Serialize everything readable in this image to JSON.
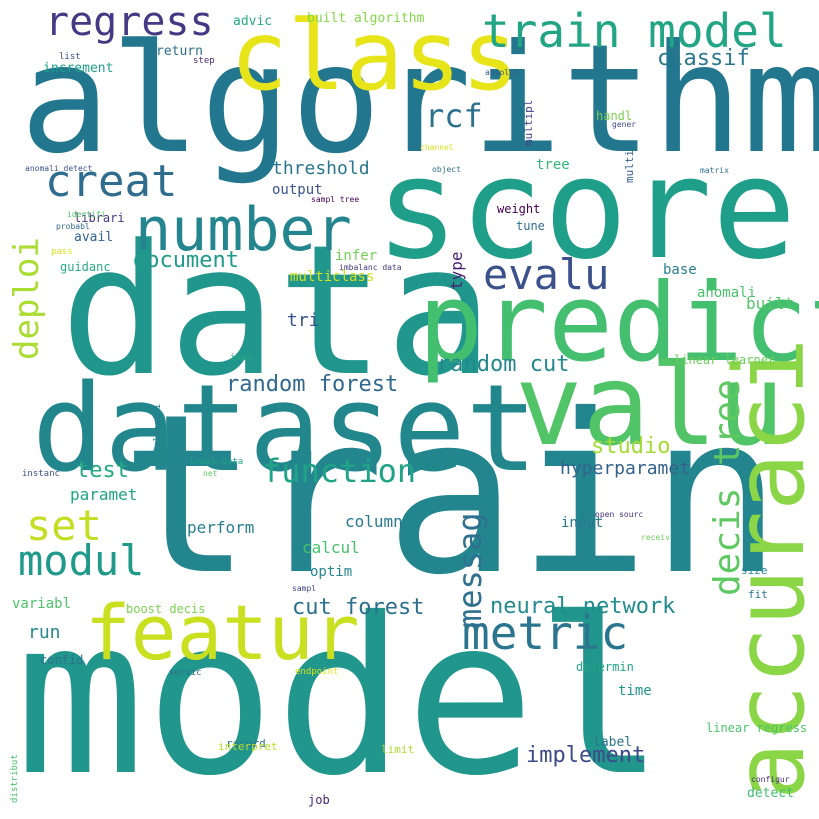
{
  "words": [
    {
      "id": "model",
      "text": "model",
      "color": "#21968c"
    },
    {
      "id": "train",
      "text": "train",
      "color": "#23868e"
    },
    {
      "id": "data",
      "text": "data",
      "color": "#21968c"
    },
    {
      "id": "algorithm",
      "text": "algorithm",
      "color": "#22778e"
    },
    {
      "id": "score",
      "text": "score",
      "color": "#1f9e89"
    },
    {
      "id": "dataset",
      "text": "dataset",
      "color": "#22878d"
    },
    {
      "id": "predict",
      "text": "predict",
      "color": "#44bf70"
    },
    {
      "id": "class",
      "text": "class",
      "color": "#e7e419"
    },
    {
      "id": "valu",
      "text": "valu",
      "color": "#52c468"
    },
    {
      "id": "featur",
      "text": "featur",
      "color": "#c9e020"
    },
    {
      "id": "accuraci",
      "text": "accuraci",
      "color": "#8bd646"
    },
    {
      "id": "train-model",
      "text": "train model",
      "color": "#21a585"
    },
    {
      "id": "number",
      "text": "number",
      "color": "#24858e"
    },
    {
      "id": "metric",
      "text": "metric",
      "color": "#2b758e"
    },
    {
      "id": "regress",
      "text": "regress",
      "color": "#443983"
    },
    {
      "id": "creat",
      "text": "creat",
      "color": "#2e6d8e"
    },
    {
      "id": "evalu",
      "text": "evalu",
      "color": "#3b518b"
    },
    {
      "id": "set",
      "text": "set",
      "color": "#c2df23"
    },
    {
      "id": "modul",
      "text": "modul",
      "color": "#1f9a8a"
    },
    {
      "id": "function",
      "text": "function",
      "color": "#20a386"
    },
    {
      "id": "messag",
      "text": "messag",
      "color": "#2d718e"
    },
    {
      "id": "decis-tree",
      "text": "decis tree",
      "color": "#5ec962"
    },
    {
      "id": "rcf",
      "text": "rcf",
      "color": "#2c728e"
    },
    {
      "id": "deploi",
      "text": "deploi",
      "color": "#aadc32"
    },
    {
      "id": "classif",
      "text": "classif",
      "color": "#2a778e"
    },
    {
      "id": "random-forest",
      "text": "random forest",
      "color": "#31688e"
    },
    {
      "id": "random-cut",
      "text": "random cut",
      "color": "#24878e"
    },
    {
      "id": "neural-network",
      "text": "neural network",
      "color": "#228b8d"
    },
    {
      "id": "document",
      "text": "document",
      "color": "#1e9b8a"
    },
    {
      "id": "implement",
      "text": "implement",
      "color": "#3e4a89"
    },
    {
      "id": "hyperparamet",
      "text": "hyperparamet",
      "color": "#33628d"
    },
    {
      "id": "studio",
      "text": "studio",
      "color": "#a5db36"
    },
    {
      "id": "test",
      "text": "test",
      "color": "#23a983"
    },
    {
      "id": "cut-forest",
      "text": "cut forest",
      "color": "#2d708e"
    },
    {
      "id": "threshold",
      "text": "threshold",
      "color": "#2a768e"
    },
    {
      "id": "tri",
      "text": "tri",
      "color": "#3a538b"
    },
    {
      "id": "run",
      "text": "run",
      "color": "#238a8d"
    },
    {
      "id": "paramet",
      "text": "paramet",
      "color": "#20a386"
    },
    {
      "id": "perform",
      "text": "perform",
      "color": "#277f8e"
    },
    {
      "id": "calcul",
      "text": "calcul",
      "color": "#48c16e"
    },
    {
      "id": "column",
      "text": "column",
      "color": "#297a8e"
    },
    {
      "id": "built",
      "text": "built",
      "color": "#52c569"
    },
    {
      "id": "input",
      "text": "input",
      "color": "#2a778e"
    },
    {
      "id": "base",
      "text": "base",
      "color": "#26828e"
    },
    {
      "id": "output",
      "text": "output",
      "color": "#39568c"
    },
    {
      "id": "type",
      "text": "type",
      "color": "#481f70"
    },
    {
      "id": "infer",
      "text": "infer",
      "color": "#75d054"
    },
    {
      "id": "optim",
      "text": "optim",
      "color": "#24868e"
    },
    {
      "id": "time",
      "text": "time",
      "color": "#1f948c"
    },
    {
      "id": "tree",
      "text": "tree",
      "color": "#35b779"
    },
    {
      "id": "variabl",
      "text": "variabl",
      "color": "#4ec36b"
    },
    {
      "id": "anomali",
      "text": "anomali",
      "color": "#4ac16d"
    },
    {
      "id": "label",
      "text": "label",
      "color": "#2b758e"
    },
    {
      "id": "built-algorithm",
      "text": "built algorithm",
      "color": "#86d549"
    },
    {
      "id": "advic",
      "text": "advic",
      "color": "#26ad81"
    },
    {
      "id": "increment",
      "text": "increment",
      "color": "#1fa088"
    },
    {
      "id": "return",
      "text": "return",
      "color": "#2e6e8e"
    },
    {
      "id": "avail",
      "text": "avail",
      "color": "#33638d"
    },
    {
      "id": "guidanc",
      "text": "guidanc",
      "color": "#25ac82"
    },
    {
      "id": "librari",
      "text": "librari",
      "color": "#453781"
    },
    {
      "id": "multiclass",
      "text": "multiclass",
      "color": "#d2e21b"
    },
    {
      "id": "boost-decis",
      "text": "boost decis",
      "color": "#7ad151"
    },
    {
      "id": "confid",
      "text": "confid",
      "color": "#2c718e"
    },
    {
      "id": "detect",
      "text": "detect",
      "color": "#40bd72"
    },
    {
      "id": "determin",
      "text": "determin",
      "color": "#20a386"
    },
    {
      "id": "handl",
      "text": "handl",
      "color": "#7ad151"
    },
    {
      "id": "multipl",
      "text": "multipl",
      "color": "#404588"
    },
    {
      "id": "multi",
      "text": "multi",
      "color": "#355f8d"
    },
    {
      "id": "weight",
      "text": "weight",
      "color": "#440154"
    },
    {
      "id": "tune",
      "text": "tune",
      "color": "#2e6e8e"
    },
    {
      "id": "linear-learner",
      "text": "linear learner",
      "color": "#6ccd5a"
    },
    {
      "id": "linear-regress",
      "text": "linear regress",
      "color": "#4cc26c"
    },
    {
      "id": "record",
      "text": "record",
      "color": "#2c738e"
    },
    {
      "id": "interpret",
      "text": "interpret",
      "color": "#bade28"
    },
    {
      "id": "limit",
      "text": "limit",
      "color": "#addc30"
    },
    {
      "id": "job",
      "text": "job",
      "color": "#482475"
    },
    {
      "id": "size",
      "text": "size",
      "color": "#25838e"
    },
    {
      "id": "fit",
      "text": "fit",
      "color": "#2c728e"
    },
    {
      "id": "list",
      "text": "list",
      "color": "#3b528b"
    },
    {
      "id": "step",
      "text": "step",
      "color": "#482677"
    },
    {
      "id": "absolut",
      "text": "absolut",
      "color": "#38598c"
    },
    {
      "id": "gener",
      "text": "gener",
      "color": "#3f4788"
    },
    {
      "id": "anomali-detect",
      "text": "anomali detect",
      "color": "#3a538b"
    },
    {
      "id": "channel",
      "text": "channel",
      "color": "#d8e219"
    },
    {
      "id": "object",
      "text": "object",
      "color": "#2c728e"
    },
    {
      "id": "matrix",
      "text": "matrix",
      "color": "#2d708e"
    },
    {
      "id": "sampl-tree",
      "text": "sampl tree",
      "color": "#440154"
    },
    {
      "id": "identifi",
      "text": "identifi",
      "color": "#50c46a"
    },
    {
      "id": "probabl",
      "text": "probabl",
      "color": "#31678e"
    },
    {
      "id": "pass",
      "text": "pass",
      "color": "#dde318"
    },
    {
      "id": "imbalanc-data",
      "text": "imbalanc data",
      "color": "#453882"
    },
    {
      "id": "imag",
      "text": "imag",
      "color": "#24aa83"
    },
    {
      "id": "classifi",
      "text": "classifi",
      "color": "#297a8e"
    },
    {
      "id": "instanc",
      "text": "instanc",
      "color": "#3b518b"
    },
    {
      "id": "input-data",
      "text": "input data",
      "color": "#1fa187"
    },
    {
      "id": "net",
      "text": "net",
      "color": "#5cc863"
    },
    {
      "id": "open-sourc",
      "text": "open sourc",
      "color": "#46337f"
    },
    {
      "id": "receiv",
      "text": "receiv",
      "color": "#6ece58"
    },
    {
      "id": "sampl",
      "text": "sampl",
      "color": "#3e4989"
    },
    {
      "id": "servic",
      "text": "servic",
      "color": "#2e6f8e"
    },
    {
      "id": "endpoint",
      "text": "endpoint",
      "color": "#dde318"
    },
    {
      "id": "configur",
      "text": "configur",
      "color": "#472d7b"
    },
    {
      "id": "distribut",
      "text": "distribut",
      "color": "#4ac16d"
    }
  ]
}
